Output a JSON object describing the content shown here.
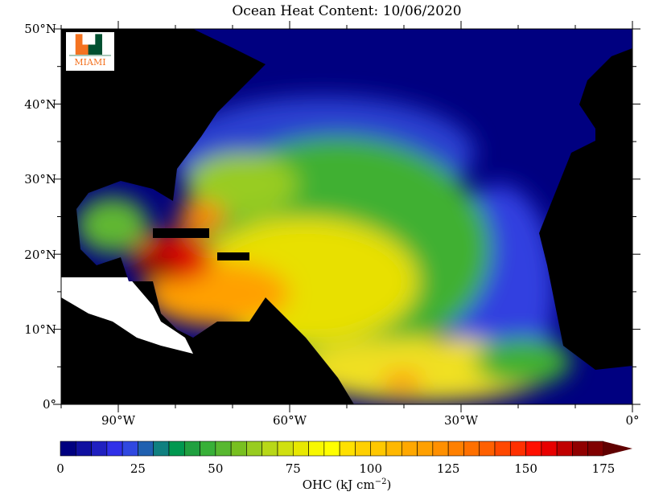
{
  "title": "Ocean Heat Content: 10/06/2020",
  "logo": {
    "text": "MIAMI",
    "mark": "U",
    "colors": {
      "orange": "#f47321",
      "green": "#005030"
    }
  },
  "map": {
    "lon_range": [
      -100,
      0
    ],
    "lat_range": [
      0,
      50
    ],
    "lat_ticks": [
      "0°",
      "10°N",
      "20°N",
      "30°N",
      "40°N",
      "50°N"
    ],
    "lon_ticks": [
      "90°W",
      "60°W",
      "30°W",
      "0°"
    ],
    "land_color": "#000000",
    "nodata_color": "#ffffff"
  },
  "colorbar": {
    "label": "OHC (kJ cm",
    "label_exp": "−2",
    "label_close": ")",
    "min": 0,
    "max": 175,
    "step": 5,
    "tick_labels": [
      "0",
      "25",
      "50",
      "75",
      "100",
      "125",
      "150",
      "175"
    ],
    "tick_values": [
      0,
      25,
      50,
      75,
      100,
      125,
      150,
      175
    ],
    "colors": [
      "#000080",
      "#1010a0",
      "#2020c0",
      "#3030e8",
      "#3048e0",
      "#2060b0",
      "#108080",
      "#009850",
      "#20a040",
      "#38b038",
      "#58b830",
      "#78c020",
      "#98cc20",
      "#b8d818",
      "#d0e010",
      "#e8e800",
      "#f8f800",
      "#ffff00",
      "#ffe000",
      "#ffd000",
      "#ffc800",
      "#ffb800",
      "#ffa800",
      "#ffa000",
      "#ff9000",
      "#ff8000",
      "#ff7000",
      "#ff6000",
      "#ff4800",
      "#ff3000",
      "#ff1000",
      "#e80000",
      "#c00000",
      "#900000",
      "#800000"
    ],
    "overflow_color": "#600000"
  }
}
